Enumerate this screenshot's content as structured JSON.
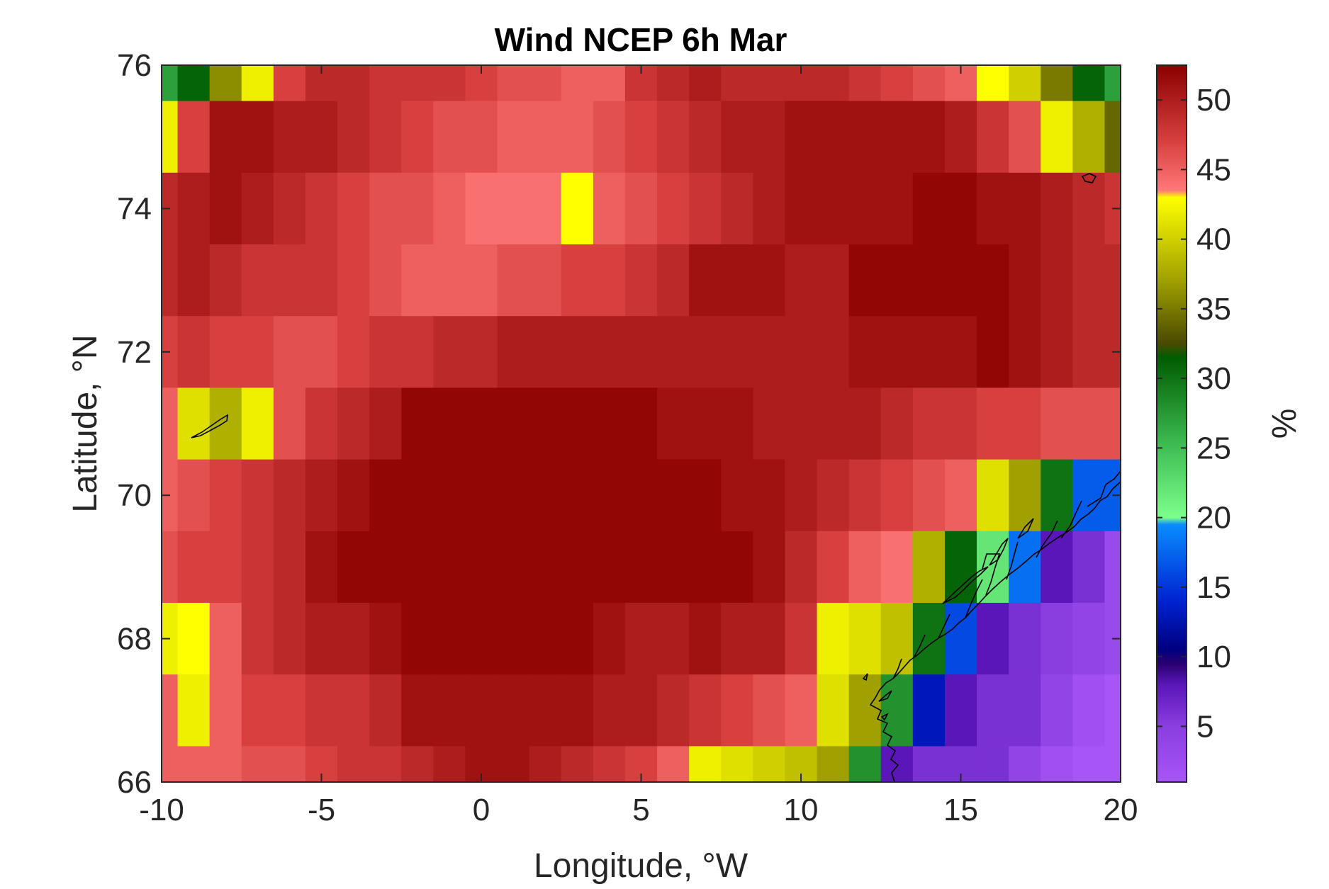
{
  "chart_data": {
    "type": "heatmap",
    "title": "Wind NCEP 6h Mar",
    "xlabel": "Longitude, °W",
    "ylabel": "Latitude, °N",
    "colorbar_label": "%",
    "xlim": [
      -10,
      20
    ],
    "ylim": [
      66,
      76
    ],
    "clim": [
      1,
      52.5
    ],
    "xticks": [
      -10,
      -5,
      0,
      5,
      10,
      15,
      20
    ],
    "xtick_labels": [
      "-10",
      "-5",
      "0",
      "5",
      "10",
      "15",
      "20"
    ],
    "yticks": [
      66,
      68,
      70,
      72,
      74,
      76
    ],
    "ytick_labels": [
      "66",
      "68",
      "70",
      "72",
      "74",
      "76"
    ],
    "cbar_ticks": [
      5,
      10,
      15,
      20,
      25,
      30,
      35,
      40,
      45,
      50
    ],
    "cbar_tick_labels": [
      "5",
      "10",
      "15",
      "20",
      "25",
      "30",
      "35",
      "40",
      "45",
      "50"
    ],
    "x_centers": [
      -10,
      -9,
      -8,
      -7,
      -6,
      -5,
      -4,
      -3,
      -2,
      -1,
      0,
      1,
      2,
      3,
      4,
      5,
      6,
      7,
      8,
      9,
      10,
      11,
      12,
      13,
      14,
      15,
      16,
      17,
      18,
      19,
      20
    ],
    "y_centers": [
      76,
      75,
      74,
      73,
      72,
      71,
      70,
      69,
      68,
      67,
      66
    ],
    "values": [
      [
        27,
        31,
        36,
        42,
        47,
        49,
        49,
        48,
        48,
        48,
        47,
        46,
        46,
        45,
        45,
        48,
        49,
        50,
        49,
        49,
        49,
        49,
        48,
        47,
        46,
        45,
        43,
        40,
        35,
        31,
        27
      ],
      [
        42,
        47,
        51,
        51,
        50,
        50,
        49,
        48,
        47,
        46,
        46,
        45,
        45,
        45,
        46,
        47,
        48,
        49,
        50,
        50,
        51,
        51,
        51,
        51,
        51,
        50,
        48,
        46,
        42,
        38,
        34
      ],
      [
        49,
        50,
        51,
        50,
        49,
        48,
        47,
        46,
        46,
        45,
        44,
        44,
        44,
        43,
        45,
        46,
        47,
        48,
        49,
        50,
        51,
        51,
        51,
        51,
        52,
        52,
        51,
        51,
        50,
        49,
        48
      ],
      [
        49,
        50,
        49,
        48,
        48,
        48,
        47,
        46,
        45,
        45,
        45,
        46,
        46,
        47,
        47,
        48,
        49,
        51,
        51,
        51,
        50,
        50,
        52,
        52,
        52,
        52,
        52,
        51,
        50,
        49,
        49
      ],
      [
        47,
        48,
        47,
        47,
        46,
        46,
        47,
        48,
        48,
        49,
        49,
        50,
        50,
        50,
        50,
        50,
        50,
        50,
        50,
        50,
        50,
        50,
        51,
        51,
        51,
        51,
        52,
        51,
        50,
        49,
        49
      ],
      [
        45,
        41,
        38,
        42,
        46,
        48,
        49,
        50,
        52,
        52,
        52,
        52,
        52,
        52,
        52,
        52,
        51,
        51,
        51,
        50,
        50,
        50,
        50,
        49,
        48,
        48,
        47,
        47,
        46,
        46,
        46
      ],
      [
        45,
        46,
        47,
        48,
        49,
        50,
        51,
        52,
        52,
        52,
        52,
        52,
        52,
        52,
        52,
        52,
        52,
        52,
        51,
        51,
        50,
        49,
        48,
        47,
        46,
        45,
        41,
        37,
        30,
        17,
        17
      ],
      [
        46,
        47,
        47,
        48,
        49,
        51,
        52,
        52,
        52,
        52,
        52,
        52,
        52,
        52,
        52,
        52,
        52,
        52,
        52,
        51,
        49,
        47,
        45,
        44,
        38,
        31,
        22,
        18,
        8,
        6,
        3
      ],
      [
        42,
        43,
        45,
        48,
        49,
        50,
        50,
        51,
        52,
        52,
        52,
        52,
        52,
        52,
        51,
        50,
        50,
        51,
        50,
        50,
        48,
        42,
        41,
        39,
        30,
        16,
        8,
        6,
        5,
        4,
        3
      ],
      [
        45,
        42,
        45,
        47,
        47,
        48,
        48,
        49,
        51,
        51,
        51,
        51,
        51,
        51,
        50,
        50,
        49,
        48,
        47,
        46,
        45,
        41,
        37,
        28,
        13,
        8,
        6,
        6,
        4,
        2,
        1
      ],
      [
        45,
        45,
        45,
        46,
        46,
        47,
        48,
        48,
        49,
        50,
        51,
        51,
        50,
        49,
        48,
        47,
        45,
        42,
        41,
        40,
        39,
        37,
        28,
        8,
        6,
        6,
        6,
        4,
        2,
        1,
        1
      ]
    ],
    "colormap": [
      {
        "v": 1,
        "c": "#a855f7"
      },
      {
        "v": 5,
        "c": "#8a3ee0"
      },
      {
        "v": 8,
        "c": "#5a16b8"
      },
      {
        "v": 9.5,
        "c": "#2a0070"
      },
      {
        "v": 10.5,
        "c": "#000080"
      },
      {
        "v": 14,
        "c": "#0022d0"
      },
      {
        "v": 19.5,
        "c": "#0a8cff"
      },
      {
        "v": 20,
        "c": "#7dff8c"
      },
      {
        "v": 25,
        "c": "#40bf55"
      },
      {
        "v": 31.5,
        "c": "#005c00"
      },
      {
        "v": 32.5,
        "c": "#4a4a00"
      },
      {
        "v": 37,
        "c": "#a0a000"
      },
      {
        "v": 43,
        "c": "#ffff00"
      },
      {
        "v": 43.5,
        "c": "#ff7878"
      },
      {
        "v": 47,
        "c": "#d84040"
      },
      {
        "v": 52.5,
        "c": "#8b0000"
      }
    ]
  }
}
